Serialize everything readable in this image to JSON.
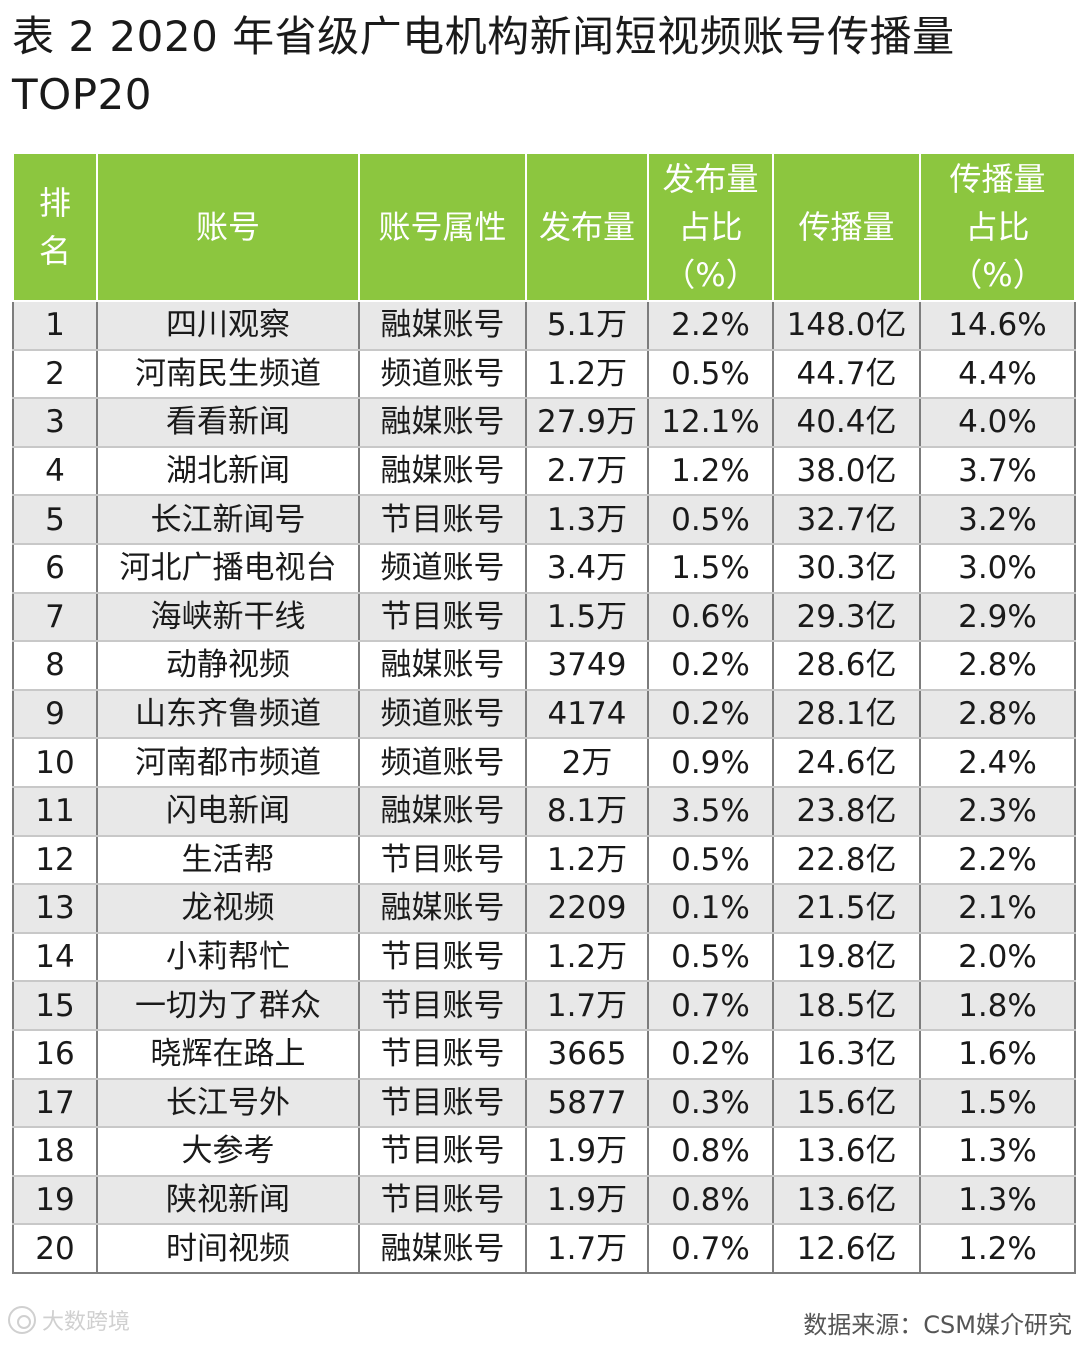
{
  "title": {
    "line1": "表 2  2020 年省级广电机构新闻短视频账号传播量",
    "line2": "TOP20"
  },
  "table": {
    "headers": {
      "rank": "排名",
      "account": "账号",
      "attribute": "账号属性",
      "posts": "发布量",
      "posts_share": "发布量占比（%）",
      "reach": "传播量",
      "reach_share": "传播量占比（%）"
    },
    "rows": [
      {
        "rank": "1",
        "account": "四川观察",
        "attribute": "融媒账号",
        "posts": "5.1万",
        "posts_share": "2.2%",
        "reach": "148.0亿",
        "reach_share": "14.6%"
      },
      {
        "rank": "2",
        "account": "河南民生频道",
        "attribute": "频道账号",
        "posts": "1.2万",
        "posts_share": "0.5%",
        "reach": "44.7亿",
        "reach_share": "4.4%"
      },
      {
        "rank": "3",
        "account": "看看新闻",
        "attribute": "融媒账号",
        "posts": "27.9万",
        "posts_share": "12.1%",
        "reach": "40.4亿",
        "reach_share": "4.0%"
      },
      {
        "rank": "4",
        "account": "湖北新闻",
        "attribute": "融媒账号",
        "posts": "2.7万",
        "posts_share": "1.2%",
        "reach": "38.0亿",
        "reach_share": "3.7%"
      },
      {
        "rank": "5",
        "account": "长江新闻号",
        "attribute": "节目账号",
        "posts": "1.3万",
        "posts_share": "0.5%",
        "reach": "32.7亿",
        "reach_share": "3.2%"
      },
      {
        "rank": "6",
        "account": "河北广播电视台",
        "attribute": "频道账号",
        "posts": "3.4万",
        "posts_share": "1.5%",
        "reach": "30.3亿",
        "reach_share": "3.0%"
      },
      {
        "rank": "7",
        "account": "海峡新干线",
        "attribute": "节目账号",
        "posts": "1.5万",
        "posts_share": "0.6%",
        "reach": "29.3亿",
        "reach_share": "2.9%"
      },
      {
        "rank": "8",
        "account": "动静视频",
        "attribute": "融媒账号",
        "posts": "3749",
        "posts_share": "0.2%",
        "reach": "28.6亿",
        "reach_share": "2.8%"
      },
      {
        "rank": "9",
        "account": "山东齐鲁频道",
        "attribute": "频道账号",
        "posts": "4174",
        "posts_share": "0.2%",
        "reach": "28.1亿",
        "reach_share": "2.8%"
      },
      {
        "rank": "10",
        "account": "河南都市频道",
        "attribute": "频道账号",
        "posts": "2万",
        "posts_share": "0.9%",
        "reach": "24.6亿",
        "reach_share": "2.4%"
      },
      {
        "rank": "11",
        "account": "闪电新闻",
        "attribute": "融媒账号",
        "posts": "8.1万",
        "posts_share": "3.5%",
        "reach": "23.8亿",
        "reach_share": "2.3%"
      },
      {
        "rank": "12",
        "account": "生活帮",
        "attribute": "节目账号",
        "posts": "1.2万",
        "posts_share": "0.5%",
        "reach": "22.8亿",
        "reach_share": "2.2%"
      },
      {
        "rank": "13",
        "account": "龙视频",
        "attribute": "融媒账号",
        "posts": "2209",
        "posts_share": "0.1%",
        "reach": "21.5亿",
        "reach_share": "2.1%"
      },
      {
        "rank": "14",
        "account": "小莉帮忙",
        "attribute": "节目账号",
        "posts": "1.2万",
        "posts_share": "0.5%",
        "reach": "19.8亿",
        "reach_share": "2.0%"
      },
      {
        "rank": "15",
        "account": "一切为了群众",
        "attribute": "节目账号",
        "posts": "1.7万",
        "posts_share": "0.7%",
        "reach": "18.5亿",
        "reach_share": "1.8%"
      },
      {
        "rank": "16",
        "account": "晓辉在路上",
        "attribute": "节目账号",
        "posts": "3665",
        "posts_share": "0.2%",
        "reach": "16.3亿",
        "reach_share": "1.6%"
      },
      {
        "rank": "17",
        "account": "长江号外",
        "attribute": "节目账号",
        "posts": "5877",
        "posts_share": "0.3%",
        "reach": "15.6亿",
        "reach_share": "1.5%"
      },
      {
        "rank": "18",
        "account": "大参考",
        "attribute": "节目账号",
        "posts": "1.9万",
        "posts_share": "0.8%",
        "reach": "13.6亿",
        "reach_share": "1.3%"
      },
      {
        "rank": "19",
        "account": "陕视新闻",
        "attribute": "节目账号",
        "posts": "1.9万",
        "posts_share": "0.8%",
        "reach": "13.6亿",
        "reach_share": "1.3%"
      },
      {
        "rank": "20",
        "account": "时间视频",
        "attribute": "融媒账号",
        "posts": "1.7万",
        "posts_share": "0.7%",
        "reach": "12.6亿",
        "reach_share": "1.2%"
      }
    ]
  },
  "footer": {
    "source": "数据来源：CSM媒介研究",
    "watermark": "大数跨境"
  },
  "colors": {
    "header_bg": "#8cc63f",
    "stripe": "#e8e8e8"
  }
}
